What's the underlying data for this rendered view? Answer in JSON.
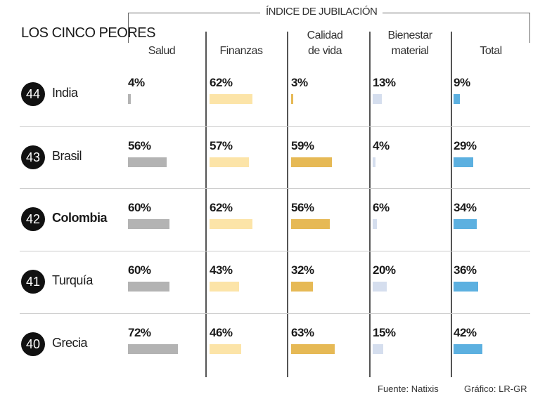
{
  "chart_data": {
    "type": "table",
    "title": "LOS CINCO PEORES",
    "group_label": "ÍNDICE DE JUBILACIÓN",
    "columns": [
      "Salud",
      "Finanzas",
      "Calidad de vida",
      "Bienestar material",
      "Total"
    ],
    "column_colors": [
      "#b3b3b3",
      "#fce4a8",
      "#e6b955",
      "#d5deee",
      "#5cb0e0"
    ],
    "unit": "%",
    "rows": [
      {
        "rank": "44",
        "country": "India",
        "highlight": false,
        "values": [
          4,
          62,
          3,
          13,
          9
        ]
      },
      {
        "rank": "43",
        "country": "Brasil",
        "highlight": false,
        "values": [
          56,
          57,
          59,
          4,
          29
        ]
      },
      {
        "rank": "42",
        "country": "Colombia",
        "highlight": true,
        "values": [
          60,
          62,
          56,
          6,
          34
        ]
      },
      {
        "rank": "41",
        "country": "Turquía",
        "highlight": false,
        "values": [
          60,
          43,
          32,
          20,
          36
        ]
      },
      {
        "rank": "40",
        "country": "Grecia",
        "highlight": false,
        "values": [
          72,
          46,
          63,
          15,
          42
        ]
      }
    ]
  },
  "header": {
    "col_lines": [
      [
        "Salud"
      ],
      [
        "Finanzas"
      ],
      [
        "Calidad",
        "de vida"
      ],
      [
        "Bienestar",
        "material"
      ],
      [
        "Total"
      ]
    ]
  },
  "footer": {
    "source": "Fuente: Natixis",
    "credit": "Gráfico: LR-GR"
  }
}
